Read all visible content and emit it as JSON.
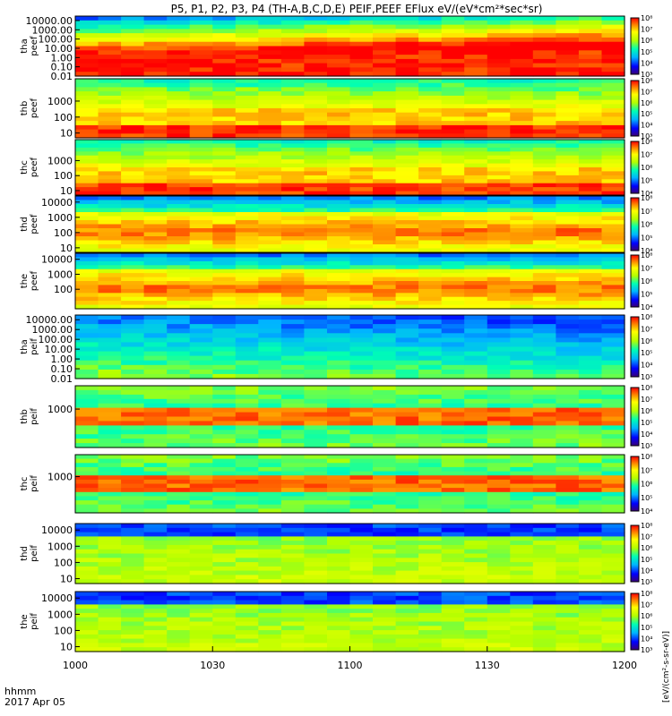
{
  "chart_data": {
    "type": "heatmap",
    "title": "P5, P1, P2, P3, P4 (TH-A,B,C,D,E) PEIF,PEEF EFlux eV/(eV*cm²*sec*sr)",
    "time_label": "hhmm",
    "date_label": "2017 Apr 05",
    "x_ticks": [
      "1000",
      "1030",
      "1100",
      "1130",
      "1200"
    ],
    "xlim": [
      "10:00",
      "12:00"
    ],
    "colorbar_label": "[eV/(cm²-s-sr-eV)]",
    "colorbar_ticks": [
      "10³",
      "10⁴",
      "10⁵",
      "10⁶",
      "10⁷",
      "10⁸"
    ],
    "colorbar_ticks_short": [
      "10⁴",
      "10⁵",
      "10⁶",
      "10⁷",
      "10⁸"
    ],
    "panels": [
      {
        "label_top": "tha",
        "label_bottom": "peef",
        "scale": "log",
        "y_ticks": [
          "10000.00",
          "1000.00",
          "100.00",
          "10.00",
          "1.00",
          "0.10",
          "0.01"
        ],
        "ylim": [
          0.01,
          30000
        ]
      },
      {
        "label_top": "thb",
        "label_bottom": "peef",
        "scale": "log",
        "y_ticks": [
          "1000",
          "100",
          "10"
        ],
        "ylim": [
          5,
          25000
        ]
      },
      {
        "label_top": "thc",
        "label_bottom": "peef",
        "scale": "log",
        "y_ticks": [
          "1000",
          "100",
          "10"
        ],
        "ylim": [
          5,
          25000
        ]
      },
      {
        "label_top": "thd",
        "label_bottom": "peef",
        "scale": "log",
        "y_ticks": [
          "10000",
          "1000",
          "100",
          "10"
        ],
        "ylim": [
          5,
          25000
        ]
      },
      {
        "label_top": "the",
        "label_bottom": "peef",
        "scale": "log",
        "y_ticks": [
          "10000",
          "1000",
          "100"
        ],
        "ylim": [
          5,
          25000
        ]
      },
      {
        "label_top": "tha",
        "label_bottom": "peif",
        "scale": "log",
        "y_ticks": [
          "10000.00",
          "1000.00",
          "100.00",
          "10.00",
          "1.00",
          "0.10",
          "0.01"
        ],
        "ylim": [
          0.01,
          30000
        ]
      },
      {
        "label_top": "thb",
        "label_bottom": "peif",
        "scale": "log",
        "y_ticks": [
          "1000"
        ],
        "ylim": [
          5,
          25000
        ]
      },
      {
        "label_top": "thc",
        "label_bottom": "peif",
        "scale": "log",
        "y_ticks": [
          "1000"
        ],
        "ylim": [
          5,
          25000
        ]
      },
      {
        "label_top": "thd",
        "label_bottom": "peif",
        "scale": "log",
        "y_ticks": [
          "10000",
          "1000",
          "100",
          "10"
        ],
        "ylim": [
          5,
          25000
        ]
      },
      {
        "label_top": "the",
        "label_bottom": "peif",
        "scale": "log",
        "y_ticks": [
          "10000",
          "1000",
          "100",
          "10"
        ],
        "ylim": [
          5,
          25000
        ]
      }
    ]
  }
}
